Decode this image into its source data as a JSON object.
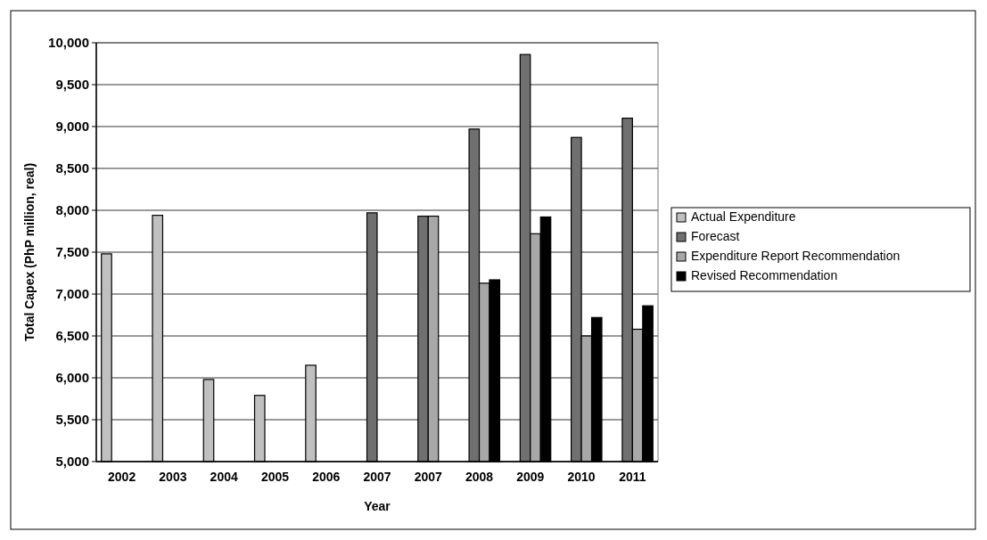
{
  "chart_data": {
    "type": "bar",
    "xlabel": "Year",
    "ylabel": "Total Capex (PhP million, real)",
    "categories": [
      "2002",
      "2003",
      "2004",
      "2005",
      "2006",
      "2007",
      "2007",
      "2008",
      "2009",
      "2010",
      "2011"
    ],
    "series": [
      {
        "name": "Actual Expenditure",
        "color": "#c0c0c0",
        "values": [
          7480,
          7940,
          5980,
          5790,
          6150,
          null,
          null,
          null,
          null,
          null,
          null
        ]
      },
      {
        "name": "Forecast",
        "color": "#707070",
        "values": [
          null,
          null,
          null,
          null,
          null,
          7970,
          7930,
          8970,
          9860,
          8870,
          9100
        ]
      },
      {
        "name": "Expenditure Report Recommendation",
        "color": "#a8a8a8",
        "values": [
          null,
          null,
          null,
          null,
          null,
          null,
          7930,
          7130,
          7720,
          6500,
          6580
        ]
      },
      {
        "name": "Revised Recommendation",
        "color": "#000000",
        "values": [
          null,
          null,
          null,
          null,
          null,
          null,
          null,
          7170,
          7920,
          6720,
          6860
        ]
      }
    ],
    "ylim": [
      5000,
      10000
    ],
    "yticks": [
      {
        "value": 5000,
        "label": "5,000"
      },
      {
        "value": 5500,
        "label": "5,500"
      },
      {
        "value": 6000,
        "label": "6,000"
      },
      {
        "value": 6500,
        "label": "6,500"
      },
      {
        "value": 7000,
        "label": "7,000"
      },
      {
        "value": 7500,
        "label": "7,500"
      },
      {
        "value": 8000,
        "label": "8,000"
      },
      {
        "value": 8500,
        "label": "8,500"
      },
      {
        "value": 9000,
        "label": "9,000"
      },
      {
        "value": 9500,
        "label": "9,500"
      },
      {
        "value": 10000,
        "label": "10,000"
      }
    ],
    "grid": "y",
    "legend": "right"
  }
}
